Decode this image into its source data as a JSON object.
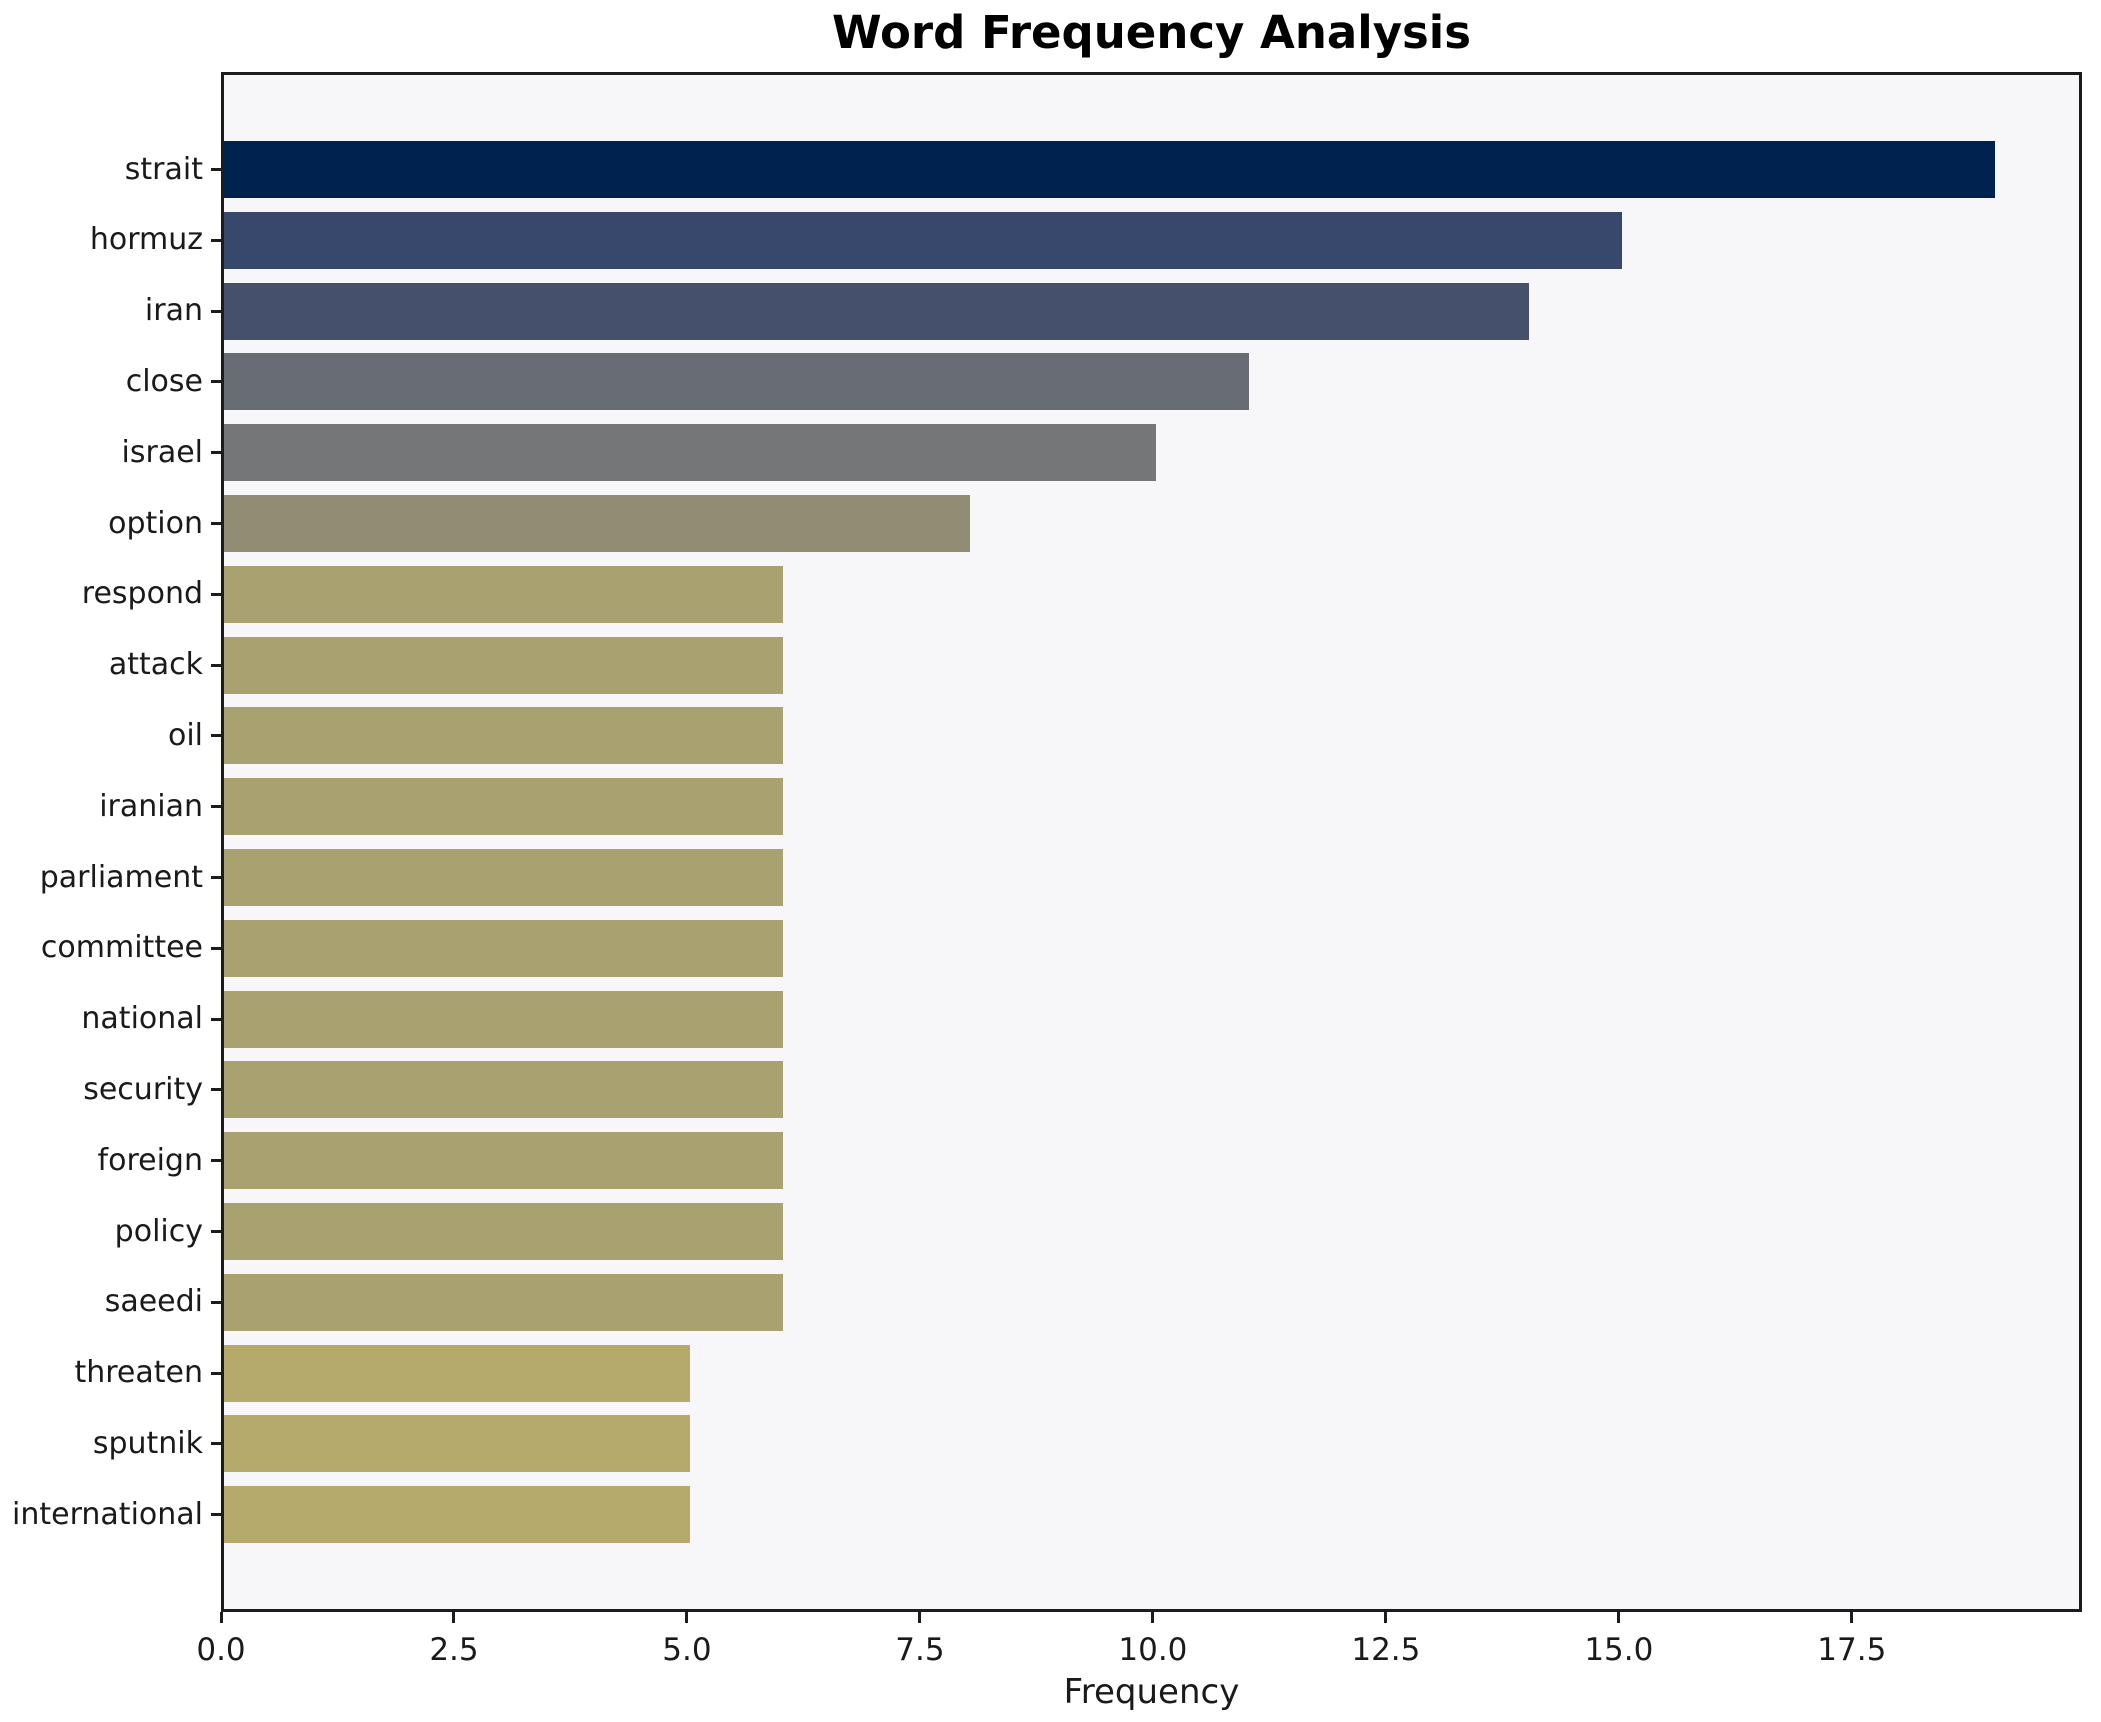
{
  "title": "Word Frequency Analysis",
  "chart_data": {
    "type": "bar",
    "orientation": "horizontal",
    "title": "Word Frequency Analysis",
    "xlabel": "Frequency",
    "ylabel": "",
    "categories": [
      "strait",
      "hormuz",
      "iran",
      "close",
      "israel",
      "option",
      "respond",
      "attack",
      "oil",
      "iranian",
      "parliament",
      "committee",
      "national",
      "security",
      "foreign",
      "policy",
      "saeedi",
      "threaten",
      "sputnik",
      "international"
    ],
    "values": [
      19,
      15,
      14,
      11,
      10,
      8,
      6,
      6,
      6,
      6,
      6,
      6,
      6,
      6,
      6,
      6,
      6,
      5,
      5,
      5
    ],
    "bar_colors": [
      "#00224f",
      "#38486c",
      "#45506c",
      "#686c74",
      "#757677",
      "#918c74",
      "#a9a16f",
      "#a9a16f",
      "#a9a16f",
      "#a9a16f",
      "#a9a16f",
      "#a9a16f",
      "#a9a16f",
      "#a9a16f",
      "#a9a16f",
      "#a9a16f",
      "#a9a16f",
      "#b5aa6c",
      "#b5aa6c",
      "#b5aa6c"
    ],
    "xlim": [
      0,
      19.97
    ],
    "xticks": [
      {
        "value": 0,
        "label": "0.0"
      },
      {
        "value": 2.5,
        "label": "2.5"
      },
      {
        "value": 5,
        "label": "5.0"
      },
      {
        "value": 7.5,
        "label": "7.5"
      },
      {
        "value": 10,
        "label": "10.0"
      },
      {
        "value": 12.5,
        "label": "12.5"
      },
      {
        "value": 15,
        "label": "15.0"
      },
      {
        "value": 17.5,
        "label": "17.5"
      }
    ],
    "grid": false,
    "legend": false,
    "plot_background": "#f7f7f9",
    "figure_background": "#ffffff",
    "spine_color": "#1c1c1c"
  }
}
